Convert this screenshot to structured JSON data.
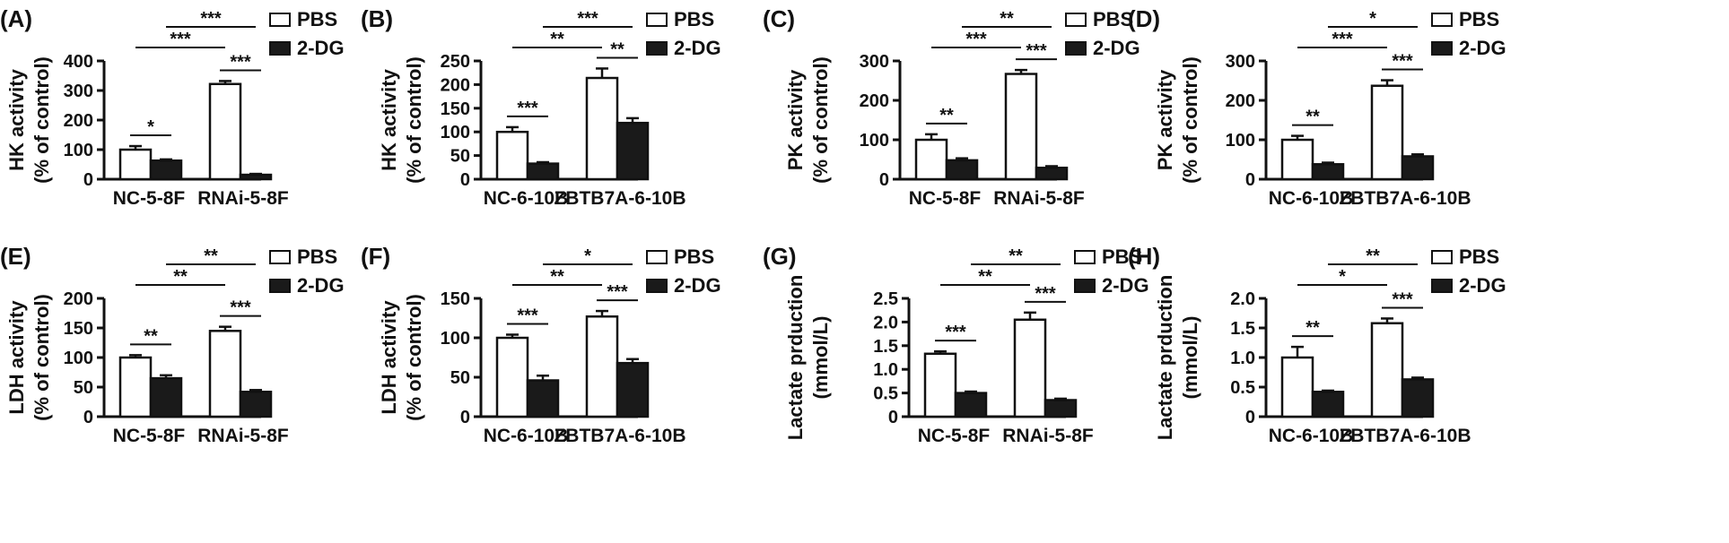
{
  "chart_data": [
    {
      "type": "bar",
      "panel": "(A)",
      "ylabel": [
        "HK activity",
        "(% of control)"
      ],
      "ylim": [
        0,
        400
      ],
      "yticks": [
        0,
        100,
        200,
        300,
        400
      ],
      "categories": [
        "NC-5-8F",
        "RNAi-5-8F"
      ],
      "legend": [
        "PBS",
        "2-DG"
      ],
      "series": [
        {
          "name": "PBS",
          "values": [
            100,
            322
          ],
          "errors": [
            12,
            10
          ]
        },
        {
          "name": "2-DG",
          "values": [
            63,
            15
          ],
          "errors": [
            4,
            3
          ]
        }
      ],
      "comparisons": [
        {
          "label": "*",
          "from": [
            0,
            0
          ],
          "to": [
            0,
            1
          ]
        },
        {
          "label": "***",
          "from": [
            1,
            0
          ],
          "to": [
            1,
            1
          ]
        },
        {
          "label": "***",
          "from": [
            0,
            0
          ],
          "to": [
            1,
            0
          ]
        },
        {
          "label": "***",
          "from": [
            0,
            1
          ],
          "to": [
            1,
            1
          ]
        }
      ]
    },
    {
      "type": "bar",
      "panel": "(B)",
      "ylabel": [
        "HK activity",
        "(% of control)"
      ],
      "ylim": [
        0,
        250
      ],
      "yticks": [
        0,
        50,
        100,
        150,
        200,
        250
      ],
      "categories": [
        "NC-6-10B",
        "ZBTB7A-6-10B"
      ],
      "legend": [
        "PBS",
        "2-DG"
      ],
      "series": [
        {
          "name": "PBS",
          "values": [
            100,
            214
          ],
          "errors": [
            10,
            20
          ]
        },
        {
          "name": "2-DG",
          "values": [
            33,
            119
          ],
          "errors": [
            3,
            10
          ]
        }
      ],
      "comparisons": [
        {
          "label": "***",
          "from": [
            0,
            0
          ],
          "to": [
            0,
            1
          ]
        },
        {
          "label": "**",
          "from": [
            1,
            0
          ],
          "to": [
            1,
            1
          ]
        },
        {
          "label": "**",
          "from": [
            0,
            0
          ],
          "to": [
            1,
            0
          ]
        },
        {
          "label": "***",
          "from": [
            0,
            1
          ],
          "to": [
            1,
            1
          ]
        }
      ]
    },
    {
      "type": "bar",
      "panel": "(C)",
      "ylabel": [
        "PK activity",
        "(% of control)"
      ],
      "ylim": [
        0,
        300
      ],
      "yticks": [
        0,
        100,
        200,
        300
      ],
      "categories": [
        "NC-5-8F",
        "RNAi-5-8F"
      ],
      "legend": [
        "PBS",
        "2-DG"
      ],
      "series": [
        {
          "name": "PBS",
          "values": [
            100,
            267
          ],
          "errors": [
            14,
            10
          ]
        },
        {
          "name": "2-DG",
          "values": [
            48,
            29
          ],
          "errors": [
            5,
            4
          ]
        }
      ],
      "comparisons": [
        {
          "label": "**",
          "from": [
            0,
            0
          ],
          "to": [
            0,
            1
          ]
        },
        {
          "label": "***",
          "from": [
            1,
            0
          ],
          "to": [
            1,
            1
          ]
        },
        {
          "label": "***",
          "from": [
            0,
            0
          ],
          "to": [
            1,
            0
          ]
        },
        {
          "label": "**",
          "from": [
            0,
            1
          ],
          "to": [
            1,
            1
          ]
        }
      ]
    },
    {
      "type": "bar",
      "panel": "(D)",
      "ylabel": [
        "PK activity",
        "(% of control)"
      ],
      "ylim": [
        0,
        300
      ],
      "yticks": [
        0,
        100,
        200,
        300
      ],
      "categories": [
        "NC-6-10B",
        "ZBTB7A-6-10B"
      ],
      "legend": [
        "PBS",
        "2-DG"
      ],
      "series": [
        {
          "name": "PBS",
          "values": [
            100,
            237
          ],
          "errors": [
            10,
            14
          ]
        },
        {
          "name": "2-DG",
          "values": [
            38,
            58
          ],
          "errors": [
            4,
            5
          ]
        }
      ],
      "comparisons": [
        {
          "label": "**",
          "from": [
            0,
            0
          ],
          "to": [
            0,
            1
          ]
        },
        {
          "label": "***",
          "from": [
            1,
            0
          ],
          "to": [
            1,
            1
          ]
        },
        {
          "label": "***",
          "from": [
            0,
            0
          ],
          "to": [
            1,
            0
          ]
        },
        {
          "label": "*",
          "from": [
            0,
            1
          ],
          "to": [
            1,
            1
          ]
        }
      ]
    },
    {
      "type": "bar",
      "panel": "(E)",
      "ylabel": [
        "LDH activity",
        "(% of control)"
      ],
      "ylim": [
        0,
        200
      ],
      "yticks": [
        0,
        50,
        100,
        150,
        200
      ],
      "categories": [
        "NC-5-8F",
        "RNAi-5-8F"
      ],
      "legend": [
        "PBS",
        "2-DG"
      ],
      "series": [
        {
          "name": "PBS",
          "values": [
            100,
            145
          ],
          "errors": [
            4,
            7
          ]
        },
        {
          "name": "2-DG",
          "values": [
            65,
            42
          ],
          "errors": [
            5,
            3
          ]
        }
      ],
      "comparisons": [
        {
          "label": "**",
          "from": [
            0,
            0
          ],
          "to": [
            0,
            1
          ]
        },
        {
          "label": "***",
          "from": [
            1,
            0
          ],
          "to": [
            1,
            1
          ]
        },
        {
          "label": "**",
          "from": [
            0,
            0
          ],
          "to": [
            1,
            0
          ]
        },
        {
          "label": "**",
          "from": [
            0,
            1
          ],
          "to": [
            1,
            1
          ]
        }
      ]
    },
    {
      "type": "bar",
      "panel": "(F)",
      "ylabel": [
        "LDH activity",
        "(% of control)"
      ],
      "ylim": [
        0,
        150
      ],
      "yticks": [
        0,
        50,
        100,
        150
      ],
      "categories": [
        "NC-6-10B",
        "ZBTB7A-6-10B"
      ],
      "legend": [
        "PBS",
        "2-DG"
      ],
      "series": [
        {
          "name": "PBS",
          "values": [
            100,
            127
          ],
          "errors": [
            4,
            7
          ]
        },
        {
          "name": "2-DG",
          "values": [
            46,
            68
          ],
          "errors": [
            6,
            5
          ]
        }
      ],
      "comparisons": [
        {
          "label": "***",
          "from": [
            0,
            0
          ],
          "to": [
            0,
            1
          ]
        },
        {
          "label": "***",
          "from": [
            1,
            0
          ],
          "to": [
            1,
            1
          ]
        },
        {
          "label": "**",
          "from": [
            0,
            0
          ],
          "to": [
            1,
            0
          ]
        },
        {
          "label": "*",
          "from": [
            0,
            1
          ],
          "to": [
            1,
            1
          ]
        }
      ]
    },
    {
      "type": "bar",
      "panel": "(G)",
      "ylabel": [
        "Lactate prduction",
        "(mmol/L)"
      ],
      "ylim": [
        0,
        2.5
      ],
      "yticks": [
        0,
        0.5,
        1.0,
        1.5,
        2.0,
        2.5
      ],
      "ytick_labels": [
        "0",
        "0.5",
        "1.0",
        "1.5",
        "2.0",
        "2.5"
      ],
      "categories": [
        "NC-5-8F",
        "RNAi-5-8F"
      ],
      "legend": [
        "PBS",
        "2-DG"
      ],
      "series": [
        {
          "name": "PBS",
          "values": [
            1.33,
            2.05
          ],
          "errors": [
            0.05,
            0.15
          ]
        },
        {
          "name": "2-DG",
          "values": [
            0.5,
            0.35
          ],
          "errors": [
            0.03,
            0.03
          ]
        }
      ],
      "comparisons": [
        {
          "label": "***",
          "from": [
            0,
            0
          ],
          "to": [
            0,
            1
          ]
        },
        {
          "label": "***",
          "from": [
            1,
            0
          ],
          "to": [
            1,
            1
          ]
        },
        {
          "label": "**",
          "from": [
            0,
            0
          ],
          "to": [
            1,
            0
          ]
        },
        {
          "label": "**",
          "from": [
            0,
            1
          ],
          "to": [
            1,
            1
          ]
        }
      ]
    },
    {
      "type": "bar",
      "panel": "(H)",
      "ylabel": [
        "Lactate prduction",
        "(mmol/L)"
      ],
      "ylim": [
        0,
        2.0
      ],
      "yticks": [
        0,
        0.5,
        1.0,
        1.5,
        2.0
      ],
      "ytick_labels": [
        "0",
        "0.5",
        "1.0",
        "1.5",
        "2.0"
      ],
      "categories": [
        "NC-6-10B",
        "ZBTB7A-6-10B"
      ],
      "legend": [
        "PBS",
        "2-DG"
      ],
      "series": [
        {
          "name": "PBS",
          "values": [
            1.0,
            1.58
          ],
          "errors": [
            0.18,
            0.08
          ]
        },
        {
          "name": "2-DG",
          "values": [
            0.42,
            0.63
          ],
          "errors": [
            0.02,
            0.03
          ]
        }
      ],
      "comparisons": [
        {
          "label": "**",
          "from": [
            0,
            0
          ],
          "to": [
            0,
            1
          ]
        },
        {
          "label": "***",
          "from": [
            1,
            0
          ],
          "to": [
            1,
            1
          ]
        },
        {
          "label": "*",
          "from": [
            0,
            0
          ],
          "to": [
            1,
            0
          ]
        },
        {
          "label": "**",
          "from": [
            0,
            1
          ],
          "to": [
            1,
            1
          ]
        }
      ]
    }
  ]
}
